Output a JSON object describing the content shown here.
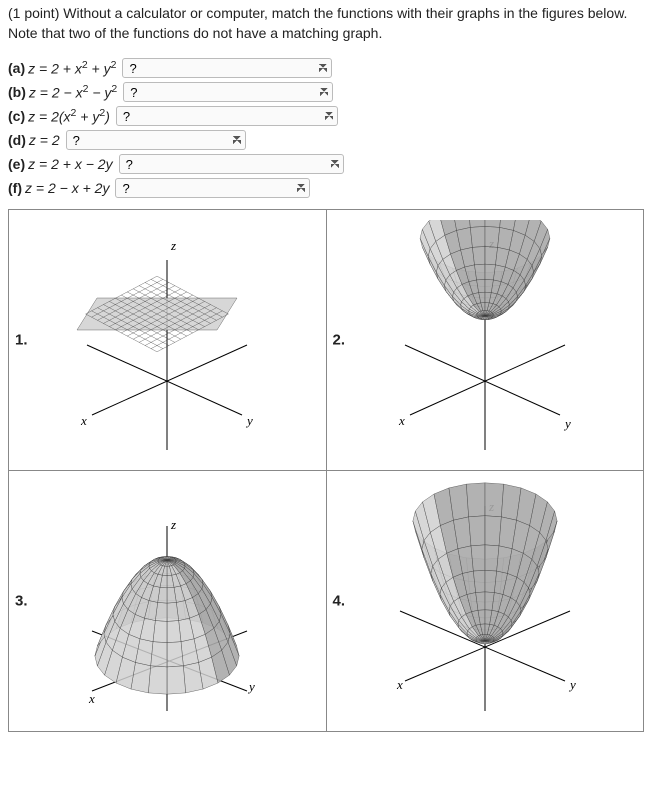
{
  "prompt": "(1 point) Without a calculator or computer, match the functions with their graphs in the figures below. Note that two of the functions do not have a matching graph.",
  "functions": {
    "a": {
      "letter": "(a)",
      "eq_html": "z = 2 + x<sup>2</sup> + y<sup>2</sup>",
      "select_width": 210
    },
    "b": {
      "letter": "(b)",
      "eq_html": "z = 2 − x<sup>2</sup> − y<sup>2</sup>",
      "select_width": 210
    },
    "c": {
      "letter": "(c)",
      "eq_html": "z = 2(x<sup>2</sup> + y<sup>2</sup>)",
      "select_width": 222
    },
    "d": {
      "letter": "(d)",
      "eq_html": "z = 2",
      "select_width": 180
    },
    "e": {
      "letter": "(e)",
      "eq_html": "z = 2 + x − 2y",
      "select_width": 225
    },
    "f": {
      "letter": "(f)",
      "eq_html": "z = 2 − x + 2y",
      "select_width": 195
    }
  },
  "dropdown_placeholder": "?",
  "graphs": {
    "1": {
      "label": "1."
    },
    "2": {
      "label": "2."
    },
    "3": {
      "label": "3."
    },
    "4": {
      "label": "4."
    }
  },
  "axis_labels": {
    "x": "x",
    "y": "y",
    "z": "z"
  }
}
